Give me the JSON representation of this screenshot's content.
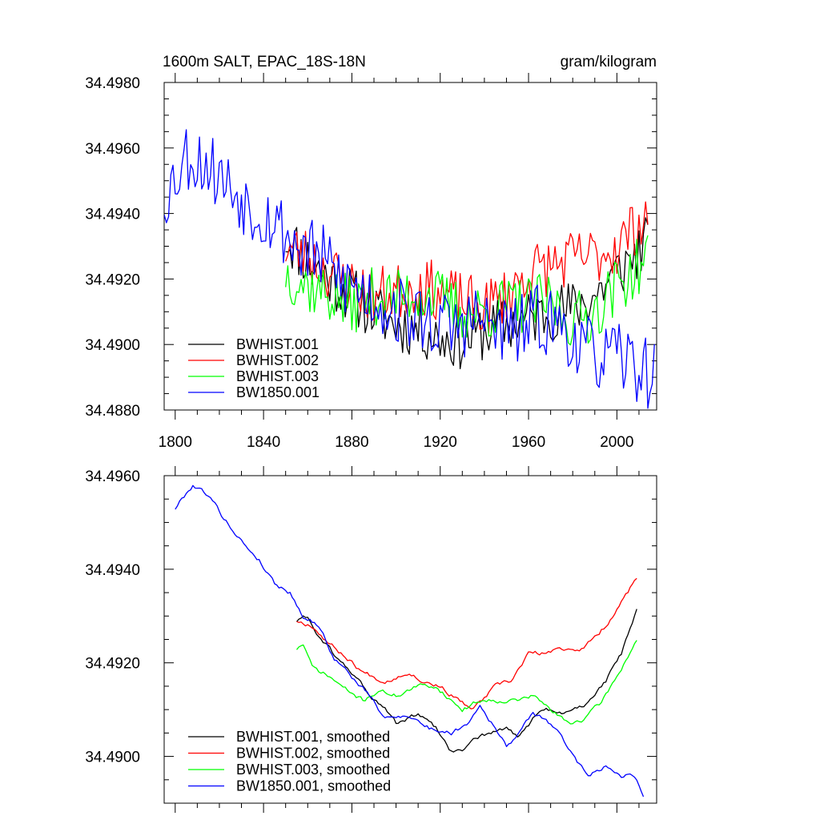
{
  "chart_data": [
    {
      "type": "line",
      "title": "1600m SALT, EPAC_18S-18N",
      "units": "gram/kilogram",
      "xlim": [
        1795,
        2018
      ],
      "ylim": [
        34.488,
        34.498
      ],
      "x_ticks": [
        1800,
        1840,
        1880,
        1920,
        1960,
        2000
      ],
      "y_ticks": [
        34.488,
        34.49,
        34.492,
        34.494,
        34.496,
        34.498
      ],
      "y_tick_labels": [
        "34.4880",
        "34.4900",
        "34.4920",
        "34.4940",
        "34.4960",
        "34.4980"
      ],
      "legend_position": "bottom-left",
      "series": [
        {
          "name": "BWHIST.001",
          "color": "#000000",
          "start_year": 1850,
          "end_year": 2014,
          "knots": [
            [
              1850,
              34.4933
            ],
            [
              1860,
              34.4926
            ],
            [
              1870,
              34.492
            ],
            [
              1880,
              34.4915
            ],
            [
              1890,
              34.491
            ],
            [
              1900,
              34.4906
            ],
            [
              1910,
              34.4905
            ],
            [
              1920,
              34.4902
            ],
            [
              1930,
              34.4901
            ],
            [
              1940,
              34.4904
            ],
            [
              1950,
              34.4906
            ],
            [
              1960,
              34.4908
            ],
            [
              1970,
              34.491
            ],
            [
              1980,
              34.4911
            ],
            [
              1990,
              34.4915
            ],
            [
              2000,
              34.4922
            ],
            [
              2014,
              34.4931
            ]
          ],
          "noise": 0.0009,
          "seed": 11
        },
        {
          "name": "BWHIST.002",
          "color": "#ff0000",
          "start_year": 1850,
          "end_year": 2014,
          "knots": [
            [
              1850,
              34.493
            ],
            [
              1860,
              34.4927
            ],
            [
              1870,
              34.4922
            ],
            [
              1880,
              34.4918
            ],
            [
              1890,
              34.4915
            ],
            [
              1900,
              34.4916
            ],
            [
              1910,
              34.4918
            ],
            [
              1920,
              34.4916
            ],
            [
              1930,
              34.4913
            ],
            [
              1940,
              34.4911
            ],
            [
              1950,
              34.4915
            ],
            [
              1960,
              34.4922
            ],
            [
              1970,
              34.4924
            ],
            [
              1980,
              34.4926
            ],
            [
              1990,
              34.4927
            ],
            [
              2000,
              34.493
            ],
            [
              2014,
              34.494
            ]
          ],
          "noise": 0.0009,
          "seed": 23
        },
        {
          "name": "BWHIST.003",
          "color": "#00ff00",
          "start_year": 1850,
          "end_year": 2014,
          "knots": [
            [
              1850,
              34.4922
            ],
            [
              1860,
              34.4918
            ],
            [
              1870,
              34.4915
            ],
            [
              1880,
              34.4912
            ],
            [
              1890,
              34.4915
            ],
            [
              1900,
              34.4914
            ],
            [
              1910,
              34.4916
            ],
            [
              1920,
              34.4914
            ],
            [
              1930,
              34.491
            ],
            [
              1940,
              34.491
            ],
            [
              1950,
              34.4912
            ],
            [
              1960,
              34.4912
            ],
            [
              1970,
              34.4913
            ],
            [
              1980,
              34.4907
            ],
            [
              1990,
              34.491
            ],
            [
              2000,
              34.4918
            ],
            [
              2014,
              34.4926
            ]
          ],
          "noise": 0.0009,
          "seed": 37
        },
        {
          "name": "BW1850.001",
          "color": "#0000ff",
          "start_year": 1795,
          "end_year": 2017,
          "knots": [
            [
              1795,
              34.4945
            ],
            [
              1805,
              34.4958
            ],
            [
              1815,
              34.4955
            ],
            [
              1825,
              34.4948
            ],
            [
              1835,
              34.4942
            ],
            [
              1845,
              34.4938
            ],
            [
              1855,
              34.493
            ],
            [
              1865,
              34.4927
            ],
            [
              1875,
              34.492
            ],
            [
              1885,
              34.4916
            ],
            [
              1895,
              34.4912
            ],
            [
              1905,
              34.4909
            ],
            [
              1915,
              34.4907
            ],
            [
              1925,
              34.4905
            ],
            [
              1935,
              34.4908
            ],
            [
              1945,
              34.4905
            ],
            [
              1955,
              34.4904
            ],
            [
              1965,
              34.4908
            ],
            [
              1975,
              34.4906
            ],
            [
              1985,
              34.4898
            ],
            [
              1995,
              34.4896
            ],
            [
              2005,
              34.4895
            ],
            [
              2017,
              34.489
            ]
          ],
          "noise": 0.0011,
          "seed": 53
        }
      ]
    },
    {
      "type": "line",
      "title": "",
      "xlim": [
        1795,
        2018
      ],
      "ylim": [
        34.489,
        34.496
      ],
      "x_ticks": [
        1800,
        1840,
        1880,
        1920,
        1960,
        2000
      ],
      "y_ticks": [
        34.49,
        34.492,
        34.494,
        34.496
      ],
      "y_tick_labels": [
        "34.4900",
        "34.4920",
        "34.4940",
        "34.4960"
      ],
      "legend_position": "bottom-left",
      "series": [
        {
          "name": "BWHIST.001, smoothed",
          "color": "#000000",
          "start_year": 1855,
          "end_year": 2009,
          "knots": [
            [
              1855,
              34.4929
            ],
            [
              1860,
              34.493
            ],
            [
              1863,
              34.4927
            ],
            [
              1868,
              34.4924
            ],
            [
              1875,
              34.492
            ],
            [
              1882,
              34.4917
            ],
            [
              1890,
              34.4912
            ],
            [
              1895,
              34.491
            ],
            [
              1900,
              34.4907
            ],
            [
              1910,
              34.4909
            ],
            [
              1918,
              34.4906
            ],
            [
              1925,
              34.4901
            ],
            [
              1930,
              34.4901
            ],
            [
              1935,
              34.4904
            ],
            [
              1942,
              34.4905
            ],
            [
              1950,
              34.4906
            ],
            [
              1955,
              34.4904
            ],
            [
              1962,
              34.4908
            ],
            [
              1968,
              34.491
            ],
            [
              1975,
              34.4909
            ],
            [
              1985,
              34.4911
            ],
            [
              1995,
              34.4916
            ],
            [
              2002,
              34.4922
            ],
            [
              2009,
              34.4931
            ]
          ],
          "noise": 4e-05,
          "seed": 61
        },
        {
          "name": "BWHIST.002, smoothed",
          "color": "#ff0000",
          "start_year": 1855,
          "end_year": 2009,
          "knots": [
            [
              1855,
              34.4929
            ],
            [
              1862,
              34.4928
            ],
            [
              1870,
              34.4924
            ],
            [
              1878,
              34.4921
            ],
            [
              1885,
              34.4918
            ],
            [
              1895,
              34.4916
            ],
            [
              1905,
              34.4918
            ],
            [
              1913,
              34.4916
            ],
            [
              1920,
              34.4915
            ],
            [
              1928,
              34.4912
            ],
            [
              1935,
              34.491
            ],
            [
              1945,
              34.4915
            ],
            [
              1952,
              34.4916
            ],
            [
              1960,
              34.4922
            ],
            [
              1968,
              34.4922
            ],
            [
              1975,
              34.4923
            ],
            [
              1985,
              34.4923
            ],
            [
              1995,
              34.4928
            ],
            [
              2002,
              34.4933
            ],
            [
              2009,
              34.4938
            ]
          ],
          "noise": 4e-05,
          "seed": 67
        },
        {
          "name": "BWHIST.003, smoothed",
          "color": "#00ff00",
          "start_year": 1855,
          "end_year": 2009,
          "knots": [
            [
              1855,
              34.4923
            ],
            [
              1858,
              34.4924
            ],
            [
              1862,
              34.4919
            ],
            [
              1870,
              34.4917
            ],
            [
              1878,
              34.4914
            ],
            [
              1885,
              34.4912
            ],
            [
              1892,
              34.4914
            ],
            [
              1900,
              34.4913
            ],
            [
              1910,
              34.4915
            ],
            [
              1918,
              34.4915
            ],
            [
              1925,
              34.4912
            ],
            [
              1930,
              34.491
            ],
            [
              1938,
              34.4912
            ],
            [
              1945,
              34.4912
            ],
            [
              1955,
              34.4912
            ],
            [
              1962,
              34.4913
            ],
            [
              1970,
              34.491
            ],
            [
              1978,
              34.4907
            ],
            [
              1985,
              34.4908
            ],
            [
              1992,
              34.4911
            ],
            [
              2000,
              34.4917
            ],
            [
              2009,
              34.4925
            ]
          ],
          "noise": 4e-05,
          "seed": 71
        },
        {
          "name": "BW1850.001, smoothed",
          "color": "#0000ff",
          "start_year": 1800,
          "end_year": 2012,
          "knots": [
            [
              1800,
              34.4953
            ],
            [
              1803,
              34.4955
            ],
            [
              1808,
              34.4958
            ],
            [
              1815,
              34.4956
            ],
            [
              1822,
              34.4951
            ],
            [
              1830,
              34.4946
            ],
            [
              1838,
              34.4942
            ],
            [
              1845,
              34.4937
            ],
            [
              1852,
              34.4935
            ],
            [
              1858,
              34.493
            ],
            [
              1865,
              34.4928
            ],
            [
              1872,
              34.4921
            ],
            [
              1880,
              34.4917
            ],
            [
              1888,
              34.4913
            ],
            [
              1895,
              34.4908
            ],
            [
              1905,
              34.4909
            ],
            [
              1915,
              34.4906
            ],
            [
              1925,
              34.4905
            ],
            [
              1932,
              34.4907
            ],
            [
              1938,
              34.4911
            ],
            [
              1945,
              34.4906
            ],
            [
              1950,
              34.4902
            ],
            [
              1957,
              34.4906
            ],
            [
              1962,
              34.4909
            ],
            [
              1968,
              34.4908
            ],
            [
              1975,
              34.4904
            ],
            [
              1982,
              34.4899
            ],
            [
              1988,
              34.4896
            ],
            [
              1995,
              34.4898
            ],
            [
              2002,
              34.4896
            ],
            [
              2008,
              34.4896
            ],
            [
              2012,
              34.4892
            ]
          ],
          "noise": 4e-05,
          "seed": 79
        }
      ]
    }
  ]
}
